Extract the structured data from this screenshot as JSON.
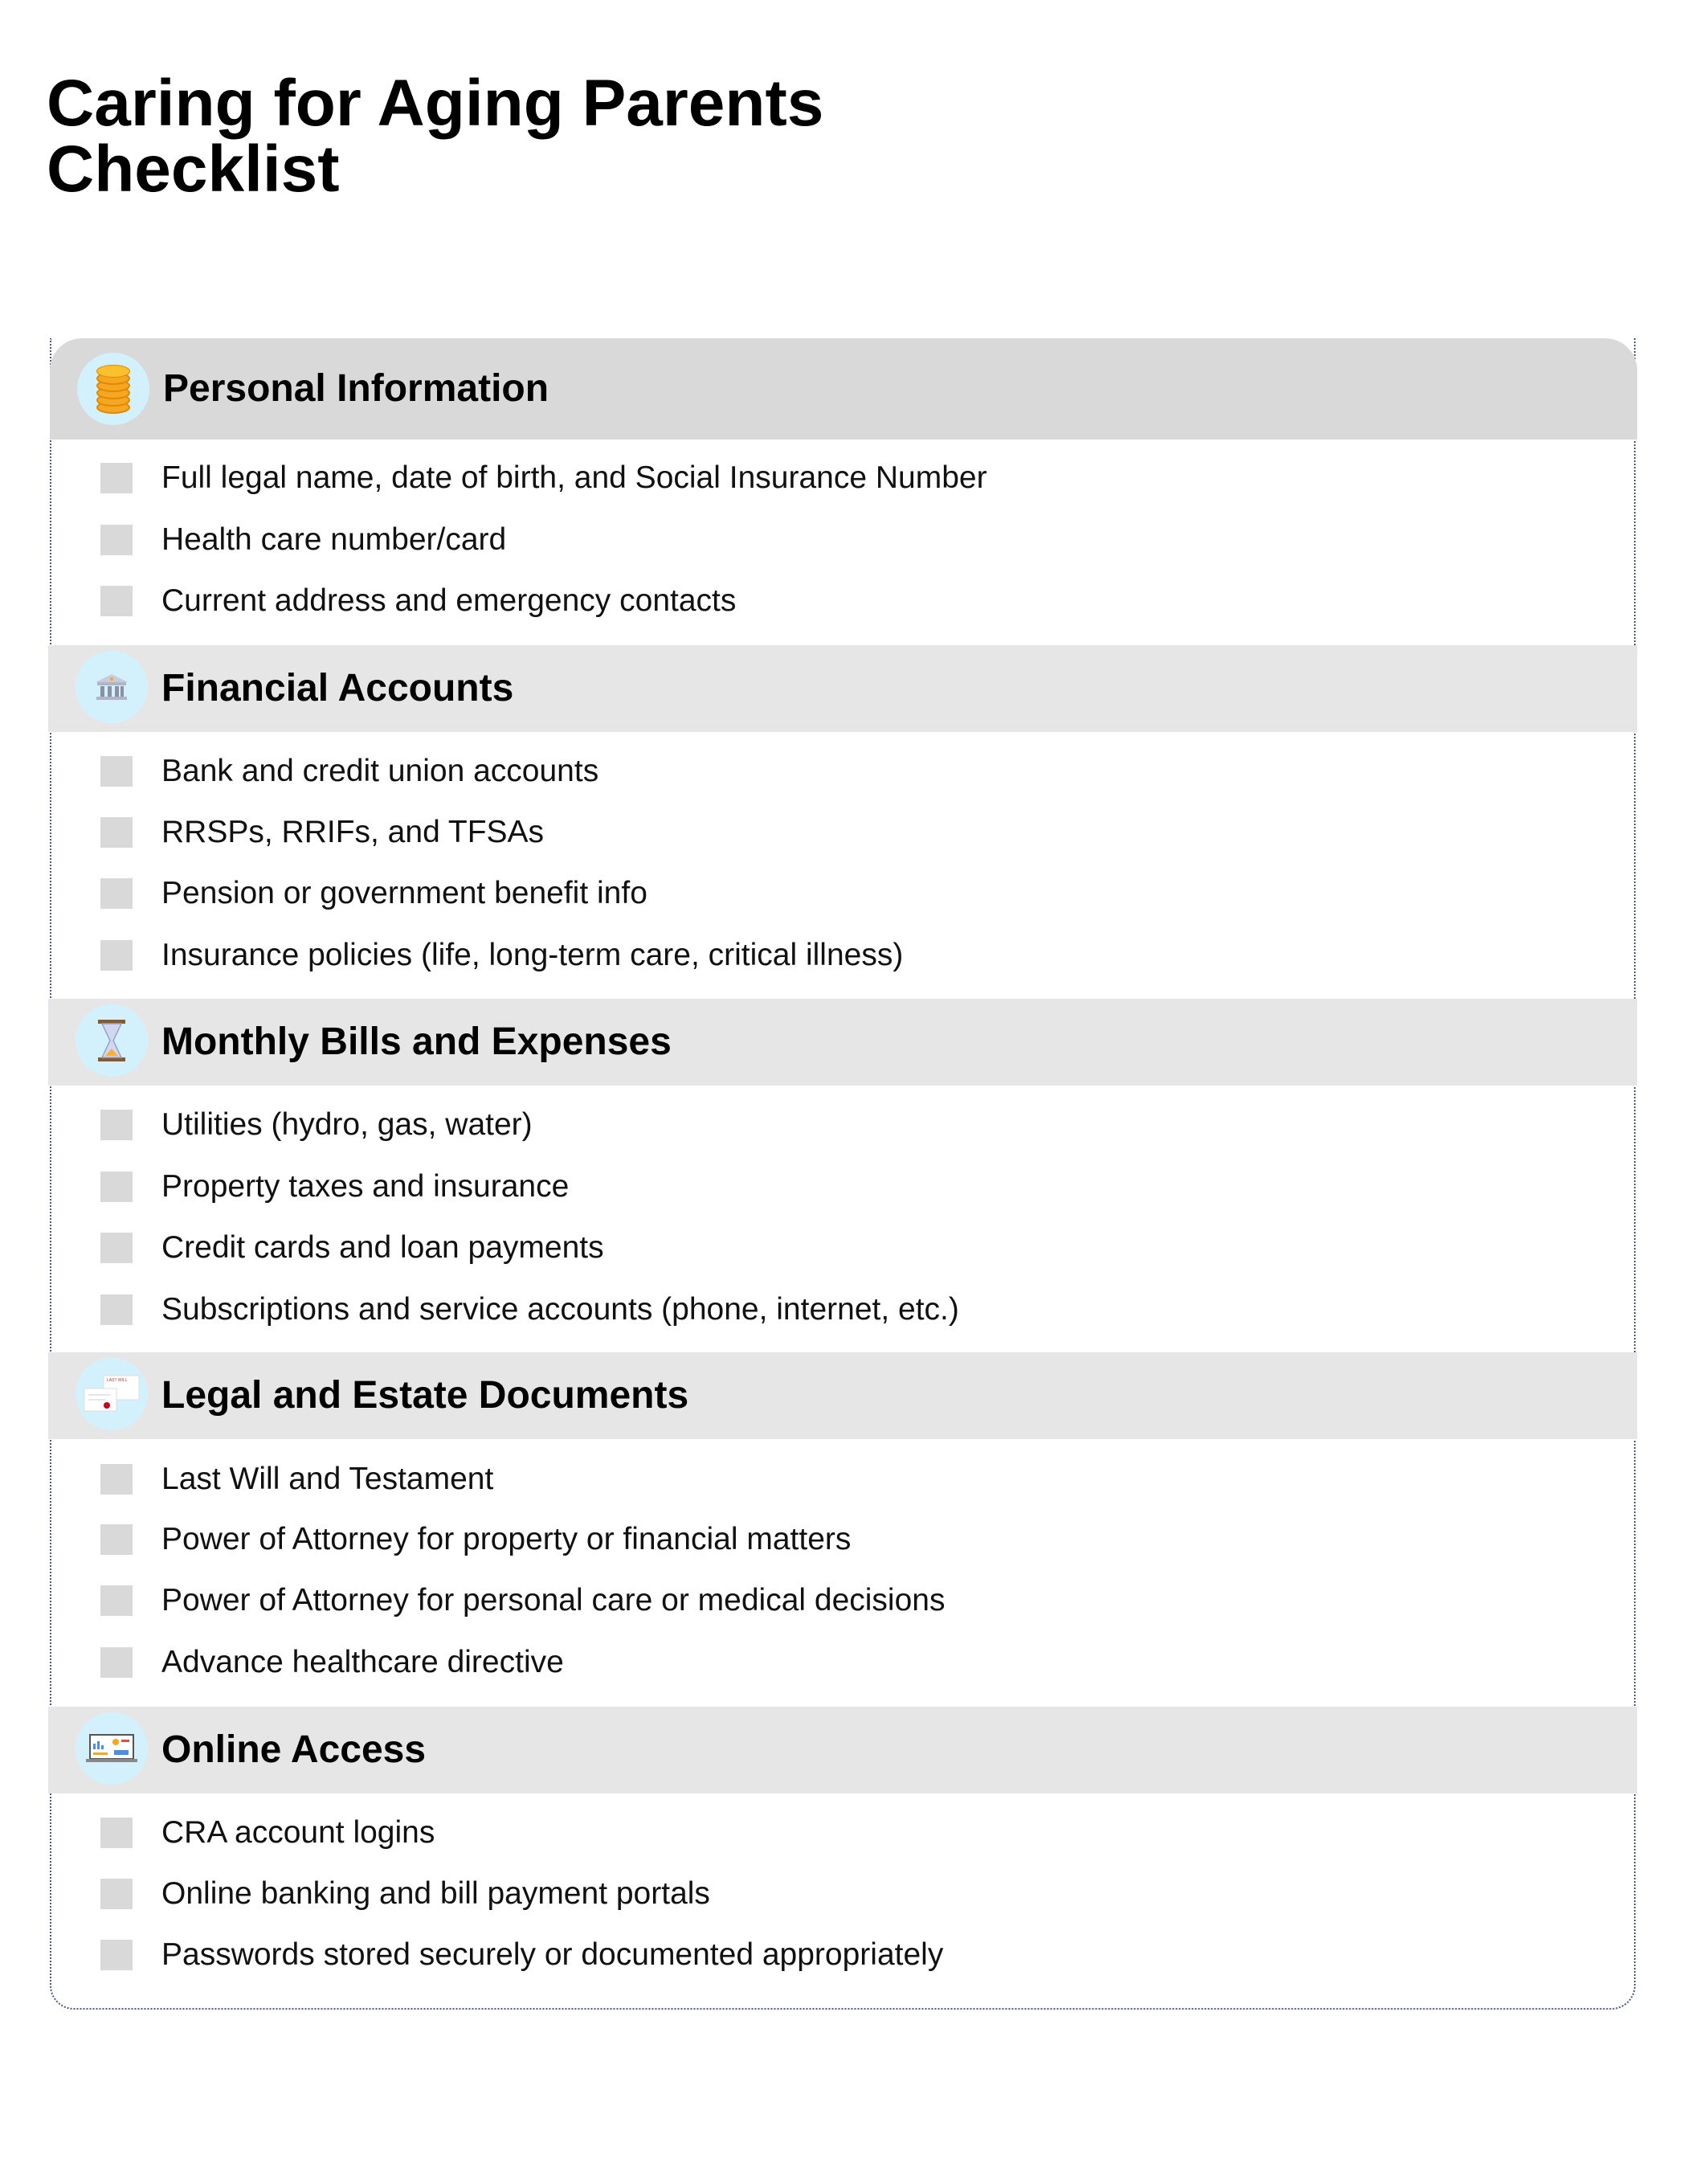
{
  "title_line1": "Caring for Aging Parents",
  "title_line2": "Checklist",
  "colors": {
    "header_bg_first": "#d9d9d9",
    "header_bg": "#e6e6e6",
    "checkbox": "#d9d9d9",
    "icon_bubble": "#d3f1fc",
    "border": "#4a5a8f"
  },
  "sections": [
    {
      "title": "Personal Information",
      "icon": "coins-icon",
      "items": [
        "Full legal name, date of birth, and Social Insurance Number",
        "Health care number/card",
        "Current address and emergency contacts"
      ]
    },
    {
      "title": "Financial Accounts",
      "icon": "bank-icon",
      "items": [
        "Bank and credit union accounts",
        "RRSPs, RRIFs, and TFSAs",
        "Pension or government benefit info",
        "Insurance policies (life, long-term care, critical illness)"
      ]
    },
    {
      "title": "Monthly Bills and Expenses",
      "icon": "hourglass-icon",
      "items": [
        "Utilities (hydro, gas, water)",
        "Property taxes and insurance",
        "Credit cards and loan payments",
        "Subscriptions and service accounts (phone, internet, etc.)"
      ]
    },
    {
      "title": "Legal and Estate Documents",
      "icon": "last-will-document-icon",
      "icon_text": "LAST WILL",
      "items": [
        "Last Will and Testament",
        "Power of Attorney for property or financial matters",
        "Power of Attorney for personal care or medical decisions",
        "Advance healthcare directive"
      ]
    },
    {
      "title": "Online Access",
      "icon": "laptop-dashboard-icon",
      "items": [
        "CRA account logins",
        "Online banking and bill payment portals",
        "Passwords stored securely or documented appropriately"
      ]
    }
  ]
}
